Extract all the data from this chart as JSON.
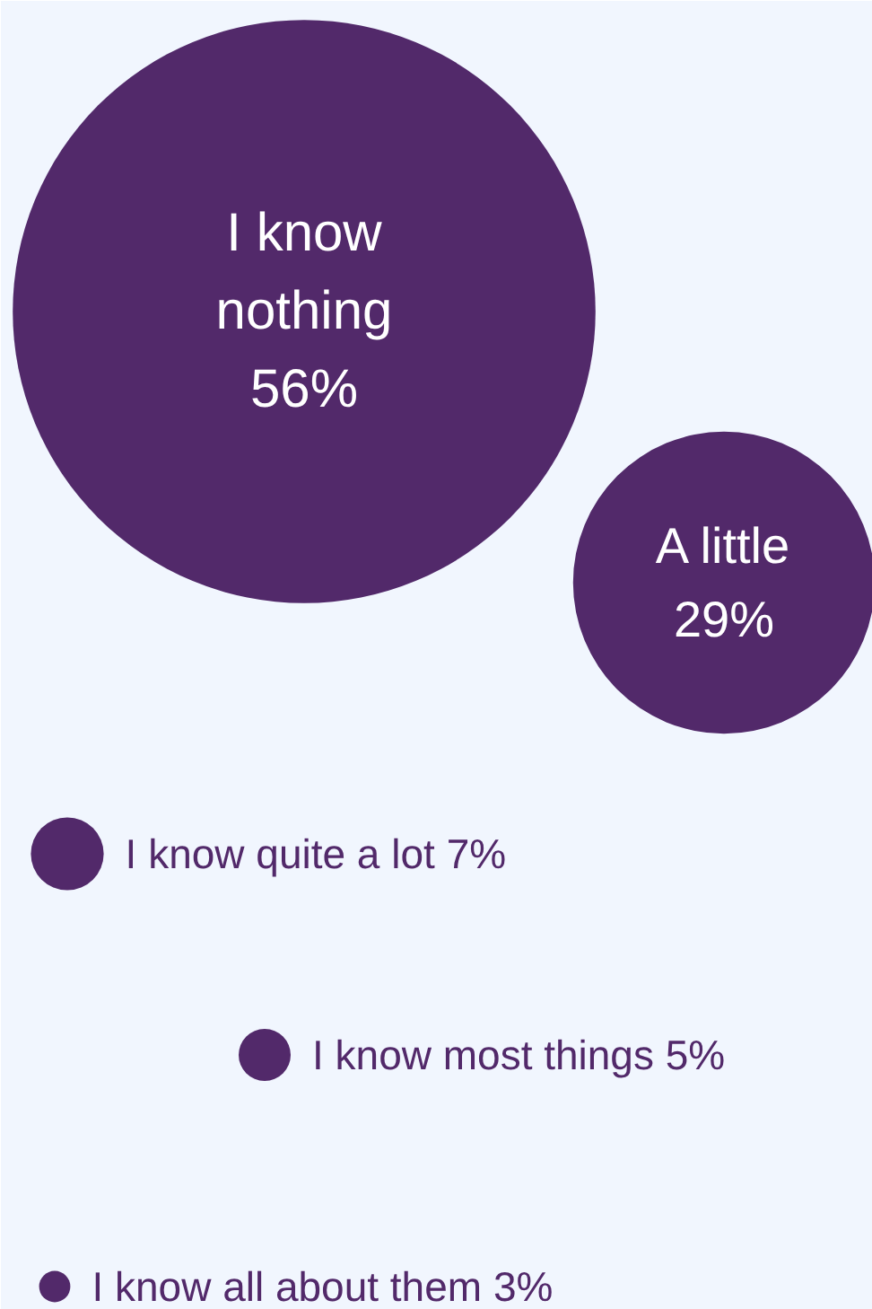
{
  "chart_data": {
    "type": "other",
    "categories": [
      "I know nothing",
      "A little",
      "I know quite a lot",
      "I know most things",
      "I know all about them"
    ],
    "values": [
      56,
      29,
      7,
      5,
      3
    ],
    "value_labels": [
      "56%",
      "29%",
      "7%",
      "5%",
      "3%"
    ],
    "color": "#52296a"
  }
}
